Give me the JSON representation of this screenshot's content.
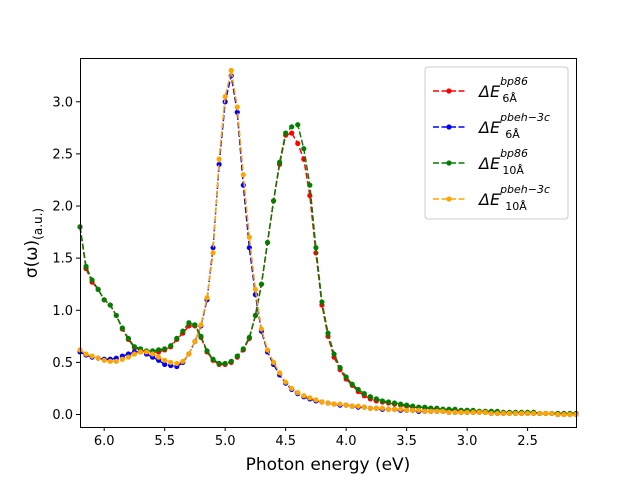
{
  "chart_data": {
    "type": "line",
    "title": "",
    "xlabel": "Photon energy (eV)",
    "ylabel": "σ(ω)(a.u.)",
    "ylabel_parts": {
      "main": "σ(ω)",
      "sub": "(a.u.)"
    },
    "xlim": [
      6.2,
      2.1
    ],
    "ylim": [
      -0.12,
      3.42
    ],
    "x_inverted": true,
    "xticks": [
      6.0,
      5.5,
      5.0,
      4.5,
      4.0,
      3.5,
      3.0,
      2.5
    ],
    "xtick_labels": [
      "6.0",
      "5.5",
      "5.0",
      "4.5",
      "4.0",
      "3.5",
      "3.0",
      "2.5"
    ],
    "yticks": [
      0.0,
      0.5,
      1.0,
      1.5,
      2.0,
      2.5,
      3.0
    ],
    "ytick_labels": [
      "0.0",
      "0.5",
      "1.0",
      "1.5",
      "2.0",
      "2.5",
      "3.0"
    ],
    "grid": false,
    "legend_position": "top-right",
    "series": [
      {
        "name": "ΔE 6Å bp86",
        "label_base": "ΔE",
        "label_sup": "bp86",
        "label_sub": "6Å",
        "color": "#ff0000",
        "x": [
          6.2,
          6.15,
          6.1,
          6.05,
          6.0,
          5.95,
          5.9,
          5.85,
          5.8,
          5.75,
          5.7,
          5.65,
          5.6,
          5.55,
          5.5,
          5.45,
          5.4,
          5.35,
          5.3,
          5.25,
          5.2,
          5.15,
          5.1,
          5.05,
          5.0,
          4.95,
          4.9,
          4.85,
          4.8,
          4.75,
          4.7,
          4.65,
          4.6,
          4.55,
          4.5,
          4.45,
          4.4,
          4.35,
          4.3,
          4.25,
          4.2,
          4.15,
          4.1,
          4.05,
          4.0,
          3.95,
          3.9,
          3.85,
          3.8,
          3.75,
          3.7,
          3.65,
          3.6,
          3.55,
          3.5,
          3.45,
          3.4,
          3.35,
          3.3,
          3.25,
          3.2,
          3.15,
          3.1,
          3.05,
          3.0,
          2.95,
          2.9,
          2.85,
          2.8,
          2.75,
          2.7,
          2.65,
          2.6,
          2.55,
          2.5,
          2.45,
          2.4,
          2.35,
          2.3,
          2.25,
          2.2,
          2.15,
          2.1
        ],
        "y": [
          1.8,
          1.4,
          1.27,
          1.2,
          1.1,
          1.05,
          0.95,
          0.82,
          0.72,
          0.64,
          0.62,
          0.6,
          0.6,
          0.6,
          0.62,
          0.65,
          0.72,
          0.78,
          0.85,
          0.85,
          0.74,
          0.6,
          0.52,
          0.48,
          0.48,
          0.5,
          0.55,
          0.62,
          0.73,
          0.95,
          1.25,
          1.65,
          2.05,
          2.4,
          2.68,
          2.7,
          2.6,
          2.45,
          2.1,
          1.55,
          1.05,
          0.75,
          0.55,
          0.43,
          0.34,
          0.28,
          0.22,
          0.18,
          0.15,
          0.13,
          0.12,
          0.11,
          0.1,
          0.09,
          0.08,
          0.07,
          0.07,
          0.06,
          0.06,
          0.05,
          0.05,
          0.04,
          0.04,
          0.04,
          0.04,
          0.03,
          0.03,
          0.03,
          0.03,
          0.02,
          0.02,
          0.02,
          0.02,
          0.02,
          0.02,
          0.02,
          0.01,
          0.01,
          0.01,
          0.01,
          0.01,
          0.01,
          0.01
        ]
      },
      {
        "name": "ΔE 6Å pbeh-3c",
        "label_base": "ΔE",
        "label_sup": "pbeh−3c",
        "label_sub": "6Å",
        "color": "#0000ff",
        "x": [
          6.2,
          6.15,
          6.1,
          6.05,
          6.0,
          5.95,
          5.9,
          5.85,
          5.8,
          5.75,
          5.7,
          5.65,
          5.6,
          5.55,
          5.5,
          5.45,
          5.4,
          5.35,
          5.3,
          5.25,
          5.2,
          5.15,
          5.1,
          5.05,
          5.0,
          4.95,
          4.9,
          4.85,
          4.8,
          4.75,
          4.7,
          4.65,
          4.6,
          4.55,
          4.5,
          4.45,
          4.4,
          4.35,
          4.3,
          4.25,
          4.2,
          4.15,
          4.1,
          4.05,
          4.0,
          3.95,
          3.9,
          3.85,
          3.8,
          3.75,
          3.7,
          3.65,
          3.6,
          3.55,
          3.5,
          3.45,
          3.4,
          3.35,
          3.3,
          3.25,
          3.2,
          3.15,
          3.1,
          3.05,
          3.0,
          2.95,
          2.9,
          2.85,
          2.8,
          2.75,
          2.7,
          2.65,
          2.6,
          2.55,
          2.5,
          2.45,
          2.4,
          2.35,
          2.3,
          2.25,
          2.2,
          2.15,
          2.1
        ],
        "y": [
          0.6,
          0.57,
          0.55,
          0.54,
          0.53,
          0.53,
          0.54,
          0.56,
          0.58,
          0.6,
          0.6,
          0.58,
          0.55,
          0.52,
          0.48,
          0.47,
          0.46,
          0.5,
          0.58,
          0.7,
          0.85,
          1.1,
          1.6,
          2.4,
          3.0,
          3.25,
          2.9,
          2.2,
          1.6,
          1.15,
          0.8,
          0.6,
          0.48,
          0.38,
          0.3,
          0.24,
          0.2,
          0.17,
          0.15,
          0.13,
          0.12,
          0.11,
          0.1,
          0.09,
          0.09,
          0.08,
          0.07,
          0.07,
          0.06,
          0.06,
          0.05,
          0.05,
          0.05,
          0.04,
          0.04,
          0.04,
          0.03,
          0.03,
          0.03,
          0.03,
          0.03,
          0.02,
          0.02,
          0.02,
          0.02,
          0.02,
          0.02,
          0.02,
          0.01,
          0.01,
          0.01,
          0.01,
          0.01,
          0.01,
          0.01,
          0.01,
          0.01,
          0.01,
          0.01,
          0.0,
          0.0,
          0.0,
          0.0
        ]
      },
      {
        "name": "ΔE 10Å bp86",
        "label_base": "ΔE",
        "label_sup": "bp86",
        "label_sub": "10Å",
        "color": "#008000",
        "x": [
          6.2,
          6.15,
          6.1,
          6.05,
          6.0,
          5.95,
          5.9,
          5.85,
          5.8,
          5.75,
          5.7,
          5.65,
          5.6,
          5.55,
          5.5,
          5.45,
          5.4,
          5.35,
          5.3,
          5.25,
          5.2,
          5.15,
          5.1,
          5.05,
          5.0,
          4.95,
          4.9,
          4.85,
          4.8,
          4.75,
          4.7,
          4.65,
          4.6,
          4.55,
          4.5,
          4.45,
          4.4,
          4.35,
          4.3,
          4.25,
          4.2,
          4.15,
          4.1,
          4.05,
          4.0,
          3.95,
          3.9,
          3.85,
          3.8,
          3.75,
          3.7,
          3.65,
          3.6,
          3.55,
          3.5,
          3.45,
          3.4,
          3.35,
          3.3,
          3.25,
          3.2,
          3.15,
          3.1,
          3.05,
          3.0,
          2.95,
          2.9,
          2.85,
          2.8,
          2.75,
          2.7,
          2.65,
          2.6,
          2.55,
          2.5,
          2.45,
          2.4,
          2.35,
          2.3,
          2.25,
          2.2,
          2.15,
          2.1
        ],
        "y": [
          1.8,
          1.42,
          1.29,
          1.2,
          1.1,
          1.05,
          0.95,
          0.83,
          0.73,
          0.65,
          0.63,
          0.61,
          0.61,
          0.62,
          0.63,
          0.66,
          0.73,
          0.8,
          0.88,
          0.86,
          0.75,
          0.61,
          0.53,
          0.49,
          0.49,
          0.51,
          0.56,
          0.63,
          0.74,
          0.95,
          1.25,
          1.65,
          2.05,
          2.42,
          2.7,
          2.76,
          2.78,
          2.55,
          2.2,
          1.6,
          1.08,
          0.78,
          0.58,
          0.45,
          0.36,
          0.29,
          0.24,
          0.2,
          0.17,
          0.15,
          0.13,
          0.12,
          0.11,
          0.1,
          0.09,
          0.08,
          0.07,
          0.07,
          0.06,
          0.06,
          0.05,
          0.05,
          0.05,
          0.04,
          0.04,
          0.04,
          0.03,
          0.03,
          0.03,
          0.03,
          0.02,
          0.02,
          0.02,
          0.02,
          0.02,
          0.02,
          0.01,
          0.01,
          0.01,
          0.01,
          0.01,
          0.01,
          0.01
        ]
      },
      {
        "name": "ΔE 10Å pbeh-3c",
        "label_base": "ΔE",
        "label_sup": "pbeh−3c",
        "label_sub": "10Å",
        "color": "#ffa500",
        "x": [
          6.2,
          6.15,
          6.1,
          6.05,
          6.0,
          5.95,
          5.9,
          5.85,
          5.8,
          5.75,
          5.7,
          5.65,
          5.6,
          5.55,
          5.5,
          5.45,
          5.4,
          5.35,
          5.3,
          5.25,
          5.2,
          5.15,
          5.1,
          5.05,
          5.0,
          4.95,
          4.9,
          4.85,
          4.8,
          4.75,
          4.7,
          4.65,
          4.6,
          4.55,
          4.5,
          4.45,
          4.4,
          4.35,
          4.3,
          4.25,
          4.2,
          4.15,
          4.1,
          4.05,
          4.0,
          3.95,
          3.9,
          3.85,
          3.8,
          3.75,
          3.7,
          3.65,
          3.6,
          3.55,
          3.5,
          3.45,
          3.4,
          3.35,
          3.3,
          3.25,
          3.2,
          3.15,
          3.1,
          3.05,
          3.0,
          2.95,
          2.9,
          2.85,
          2.8,
          2.75,
          2.7,
          2.65,
          2.6,
          2.55,
          2.5,
          2.45,
          2.4,
          2.35,
          2.3,
          2.25,
          2.2,
          2.15,
          2.1
        ],
        "y": [
          0.62,
          0.58,
          0.56,
          0.54,
          0.52,
          0.51,
          0.51,
          0.53,
          0.55,
          0.58,
          0.6,
          0.6,
          0.58,
          0.55,
          0.52,
          0.5,
          0.49,
          0.51,
          0.58,
          0.7,
          0.86,
          1.12,
          1.55,
          2.45,
          3.05,
          3.3,
          2.95,
          2.3,
          1.7,
          1.2,
          0.82,
          0.62,
          0.5,
          0.4,
          0.31,
          0.25,
          0.21,
          0.18,
          0.16,
          0.14,
          0.12,
          0.11,
          0.1,
          0.1,
          0.09,
          0.08,
          0.08,
          0.07,
          0.06,
          0.06,
          0.06,
          0.05,
          0.05,
          0.05,
          0.04,
          0.04,
          0.04,
          0.03,
          0.03,
          0.03,
          0.03,
          0.02,
          0.02,
          0.02,
          0.02,
          0.02,
          0.02,
          0.02,
          0.01,
          0.01,
          0.01,
          0.01,
          0.01,
          0.01,
          0.01,
          0.01,
          0.01,
          0.01,
          0.01,
          0.0,
          0.0,
          0.0,
          0.0
        ]
      }
    ]
  }
}
